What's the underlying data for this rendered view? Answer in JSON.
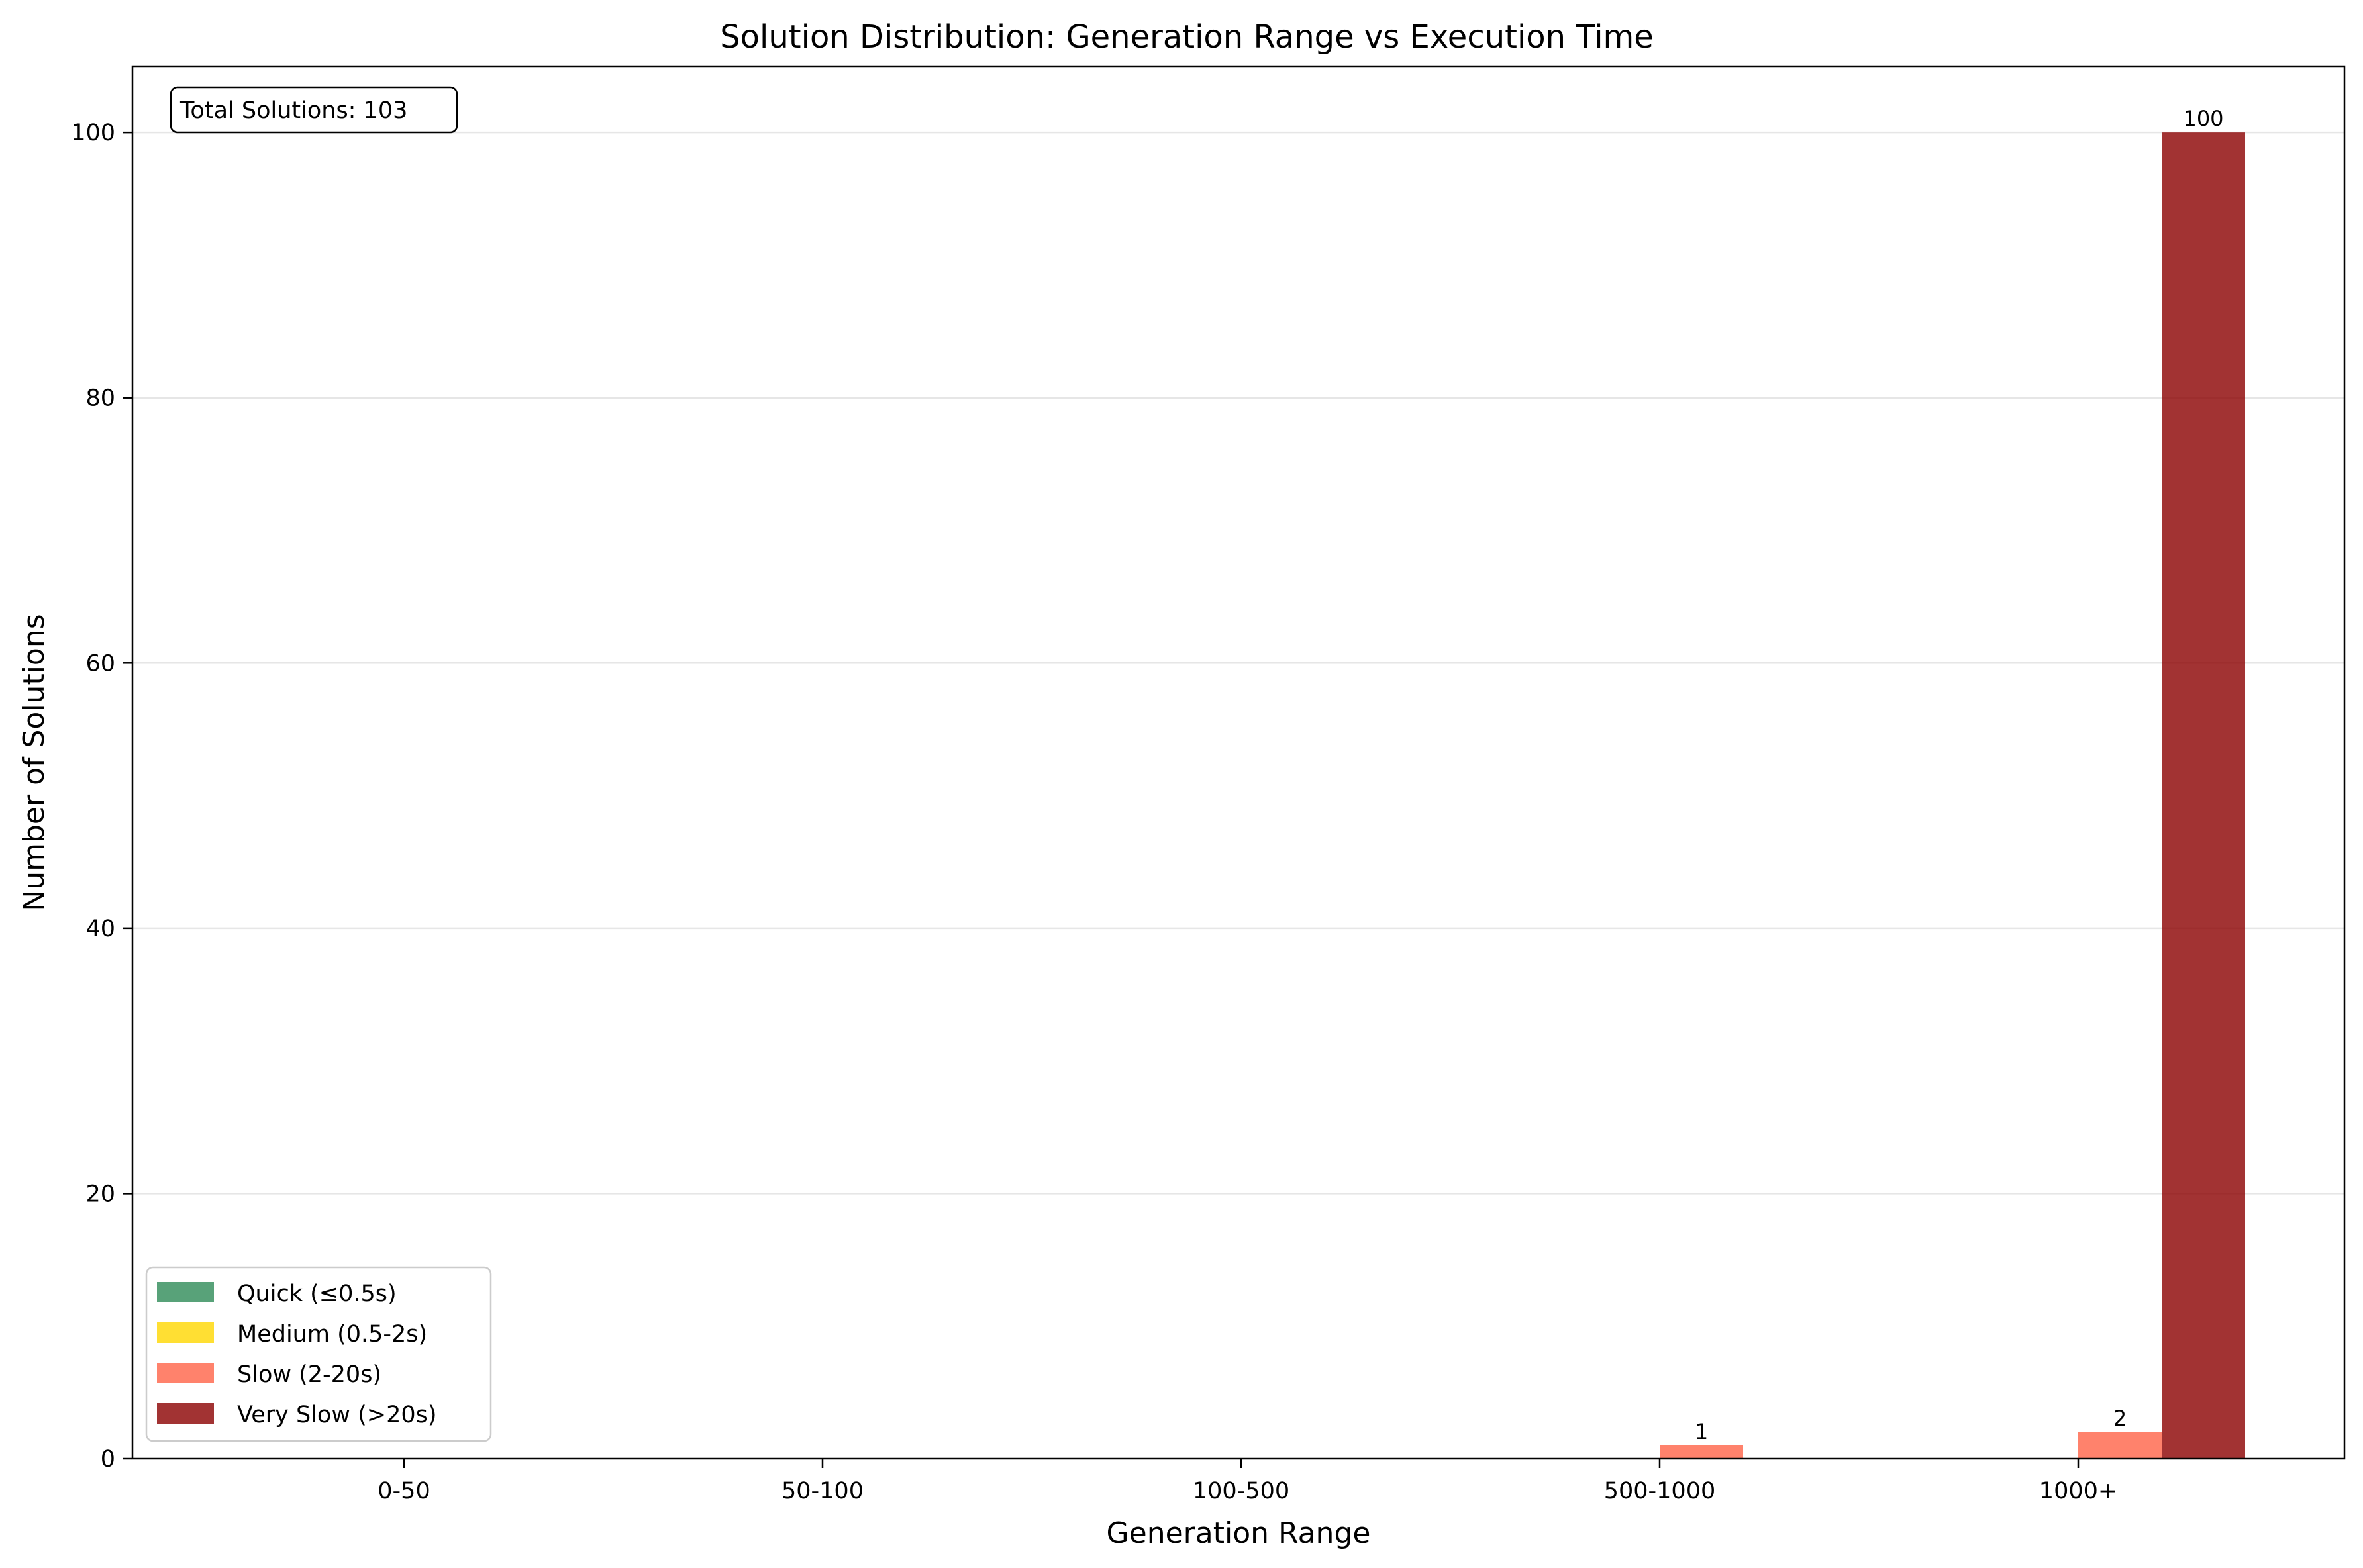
{
  "chart_data": {
    "type": "bar",
    "title": "Solution Distribution: Generation Range vs Execution Time",
    "xlabel": "Generation Range",
    "ylabel": "Number of Solutions",
    "categories": [
      "0-50",
      "50-100",
      "100-500",
      "500-1000",
      "1000+"
    ],
    "ylim": [
      0,
      105
    ],
    "yticks": [
      "0",
      "20",
      "40",
      "60",
      "80",
      "100"
    ],
    "grid": "horizontal",
    "legend_position": "lower-left",
    "annotation": "Total Solutions: 103",
    "series": [
      {
        "name": "Quick (≤0.5s)",
        "color": "#2e8b57",
        "values": [
          0,
          0,
          0,
          0,
          0
        ]
      },
      {
        "name": "Medium (0.5-2s)",
        "color": "#ffd700",
        "values": [
          0,
          0,
          0,
          0,
          0
        ]
      },
      {
        "name": "Slow (2-20s)",
        "color": "#ff6347",
        "values": [
          0,
          0,
          0,
          1,
          2
        ]
      },
      {
        "name": "Very Slow (>20s)",
        "color": "#8b0000",
        "values": [
          0,
          0,
          0,
          0,
          100
        ]
      }
    ]
  }
}
